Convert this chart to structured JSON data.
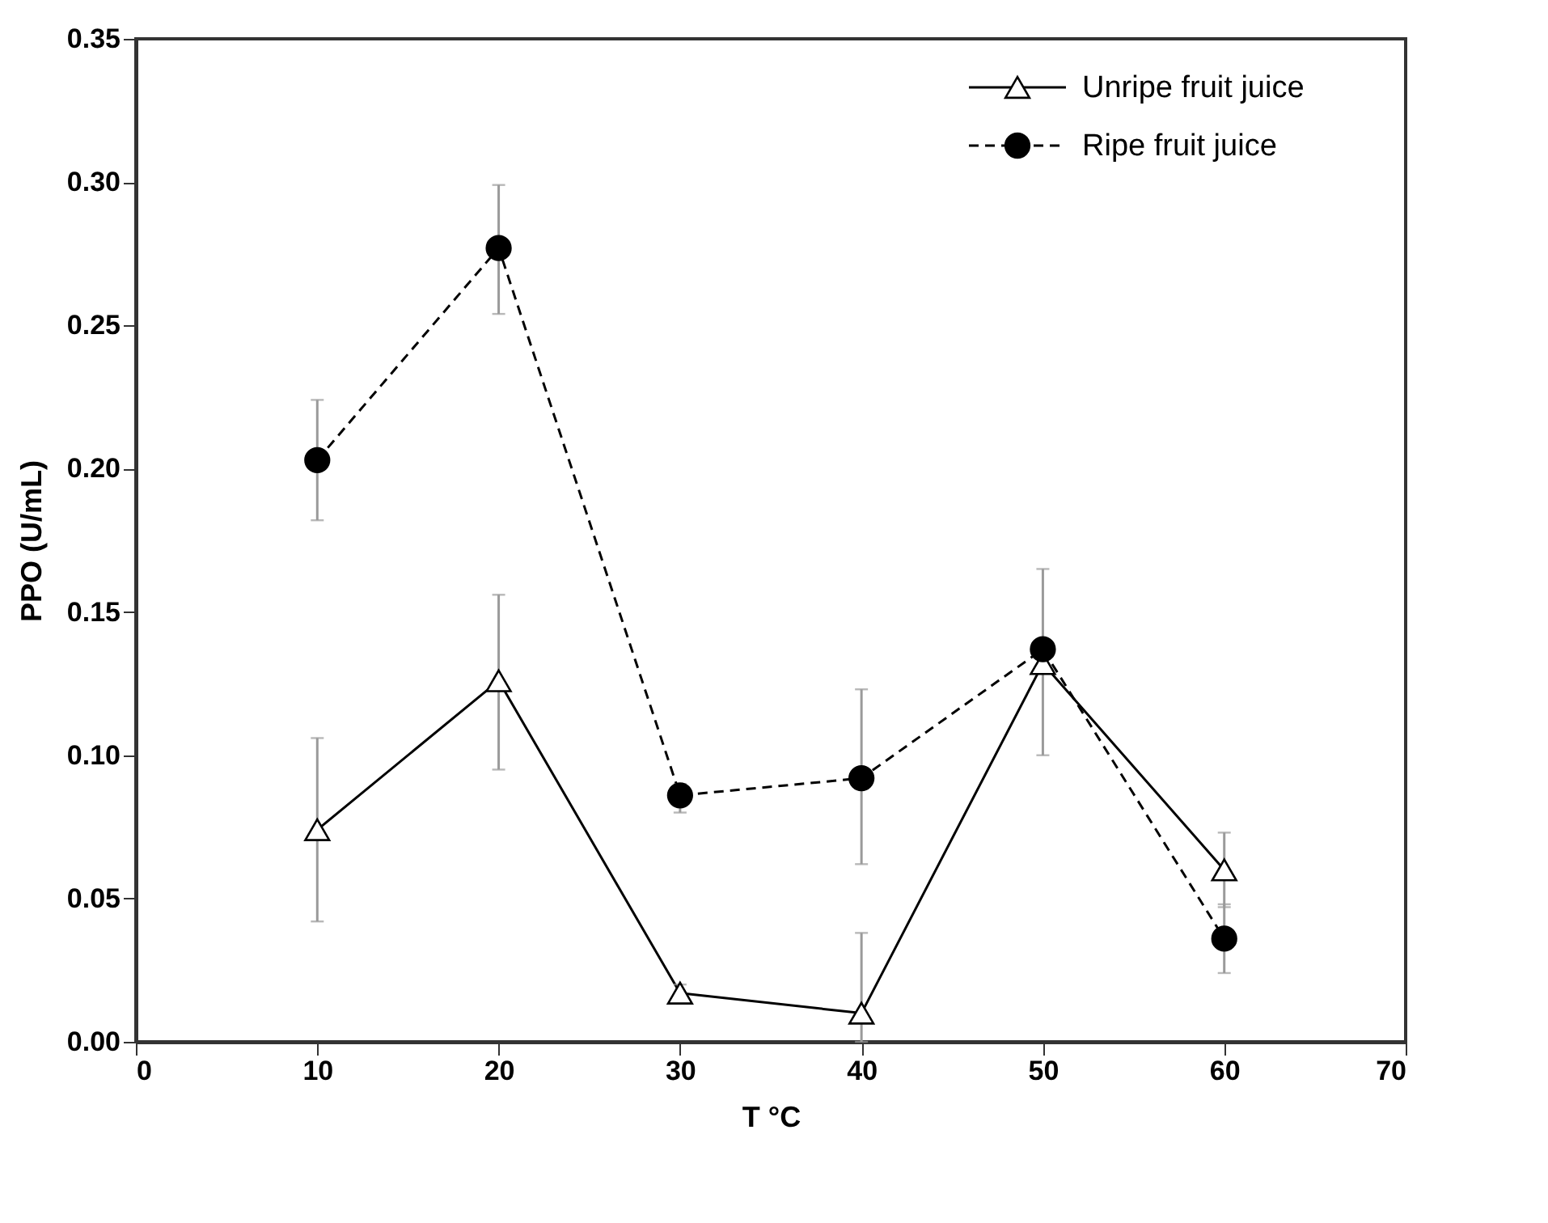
{
  "chart_data": {
    "type": "line",
    "xlabel": "T °C",
    "ylabel": "PPO (U/mL)",
    "x": [
      10,
      20,
      30,
      40,
      50,
      60
    ],
    "xlim": [
      0,
      70
    ],
    "xticks": [
      0,
      10,
      20,
      30,
      40,
      50,
      60,
      70
    ],
    "ylim": [
      0,
      0.35
    ],
    "yticks": [
      {
        "value": 0,
        "label": "0.00"
      },
      0.05,
      {
        "value": 0.1,
        "label": "0.10"
      },
      0.15,
      {
        "value": 0.2,
        "label": "0.20"
      },
      0.25,
      {
        "value": 0.3,
        "label": "0.30"
      },
      0.35
    ],
    "grid": false,
    "legend": "top right",
    "series": [
      {
        "name": "Unripe fruit juice",
        "color": "#000000",
        "marker": "triangle",
        "line_style": "solid",
        "values": [
          0.074,
          0.126,
          0.017,
          0.01,
          0.132,
          0.06
        ],
        "errors": [
          [
            0.042,
            0.106
          ],
          [
            0.095,
            0.156
          ],
          [
            0.014,
            0.02
          ],
          [
            0.0,
            0.038
          ],
          null,
          [
            0.047,
            0.073
          ]
        ]
      },
      {
        "name": "Ripe fruit juice",
        "color": "#000000",
        "marker": "circle",
        "line_style": "dashed",
        "values": [
          0.203,
          0.277,
          0.086,
          0.092,
          0.137,
          0.036
        ],
        "errors": [
          [
            0.182,
            0.224
          ],
          [
            0.254,
            0.299
          ],
          [
            0.08,
            0.09
          ],
          [
            0.062,
            0.123
          ],
          [
            0.1,
            0.165
          ],
          [
            0.024,
            0.048
          ]
        ]
      }
    ]
  }
}
